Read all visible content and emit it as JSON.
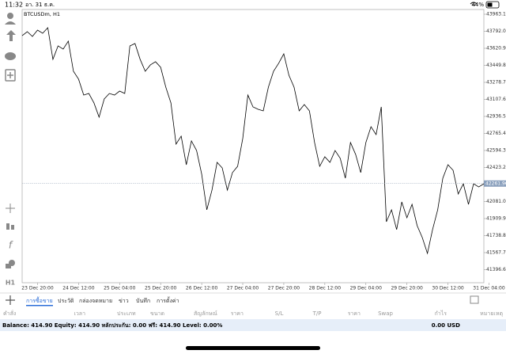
{
  "status_bar": {
    "time": "11:32",
    "date": "อา. 31 ธ.ค.",
    "battery": "44%"
  },
  "left_toolbar": {
    "timeframe": "H1"
  },
  "chart_data": {
    "type": "line",
    "title": "BTCUSDm, H1",
    "color": "#000000",
    "categories": [
      null,
      null,
      null,
      "23 Dec 20:00",
      null,
      null,
      null,
      null,
      null,
      null,
      null,
      "24 Dec 12:00",
      null,
      null,
      null,
      null,
      null,
      null,
      null,
      "25 Dec 04:00",
      null,
      null,
      null,
      null,
      null,
      null,
      null,
      "25 Dec 20:00",
      null,
      null,
      null,
      null,
      null,
      null,
      null,
      "26 Dec 12:00",
      null,
      null,
      null,
      null,
      null,
      null,
      null,
      "27 Dec 04:00",
      null,
      null,
      null,
      null,
      null,
      null,
      null,
      "27 Dec 20:00",
      null,
      null,
      null,
      null,
      null,
      null,
      null,
      "28 Dec 12:00",
      null,
      null,
      null,
      null,
      null,
      null,
      null,
      "29 Dec 04:00",
      null,
      null,
      null,
      null,
      null,
      null,
      null,
      "29 Dec 20:00",
      null,
      null,
      null,
      null,
      null,
      null,
      null,
      "30 Dec 12:00",
      null,
      null,
      null,
      null,
      null,
      null,
      null,
      "31 Dec 04:00"
    ],
    "values": [
      43748,
      43788,
      43740,
      43804,
      43772,
      43828,
      43510,
      43645,
      43613,
      43693,
      43390,
      43311,
      43151,
      43167,
      43072,
      42929,
      43112,
      43167,
      43151,
      43191,
      43167,
      43645,
      43669,
      43510,
      43390,
      43454,
      43486,
      43430,
      43231,
      43072,
      42658,
      42738,
      42451,
      42690,
      42594,
      42356,
      41998,
      42196,
      42475,
      42419,
      42196,
      42372,
      42435,
      42714,
      43151,
      43032,
      43008,
      42992,
      43231,
      43390,
      43470,
      43565,
      43350,
      43231,
      42992,
      43056,
      42992,
      42674,
      42435,
      42531,
      42475,
      42594,
      42515,
      42316,
      42674,
      42555,
      42372,
      42674,
      42833,
      42754,
      43032,
      41878,
      41998,
      41799,
      42077,
      41918,
      42053,
      41838,
      41719,
      41560,
      41799,
      41998,
      42316,
      42451,
      42395,
      42157,
      42260,
      42053,
      42260,
      42228,
      42260,
      null
    ],
    "ylim": [
      41265.3,
      44010.8
    ],
    "yticks": [
      {
        "value": 43963.1,
        "label": "43963.10"
      },
      {
        "value": 43792,
        "label": "43792.00"
      },
      {
        "value": 43620.9,
        "label": "43620.90"
      },
      {
        "value": 43449.8,
        "label": "43449.80"
      },
      {
        "value": 43278.7,
        "label": "43278.70"
      },
      {
        "value": 43107.6,
        "label": "43107.60"
      },
      {
        "value": 42936.5,
        "label": "42936.50"
      },
      {
        "value": 42765.4,
        "label": "42765.40"
      },
      {
        "value": 42594.3,
        "label": "42594.30"
      },
      {
        "value": 42423.2,
        "label": "42423.20"
      },
      {
        "value": 42081,
        "label": "42081.00"
      },
      {
        "value": 41909.9,
        "label": "41909.90"
      },
      {
        "value": 41738.8,
        "label": "41738.80"
      },
      {
        "value": 41567.7,
        "label": "41567.70"
      },
      {
        "value": 41396.6,
        "label": "41396.60"
      }
    ],
    "current_price": {
      "value": 42261.96,
      "label": "42261.96"
    }
  },
  "tabs": [
    "การซื้อขาย",
    "ประวัติ",
    "กล่องจดหมาย",
    "ข่าว",
    "บันทึก",
    "การตั้งค่า"
  ],
  "table": {
    "headers": [
      "คำสั่ง",
      "เวลา",
      "ประเภท",
      "ขนาด",
      "สัญลักษณ์",
      "ราคา",
      "S/L",
      "T/P",
      "ราคา",
      "Swap",
      "กำไร",
      "หมายเหตุ"
    ]
  },
  "summary": {
    "text": "Balance: 414.90 Equity: 414.90 หลักประกัน: 0.00 ฟรี: 414.90 Level: 0.00%",
    "profit": "0.00 USD"
  }
}
